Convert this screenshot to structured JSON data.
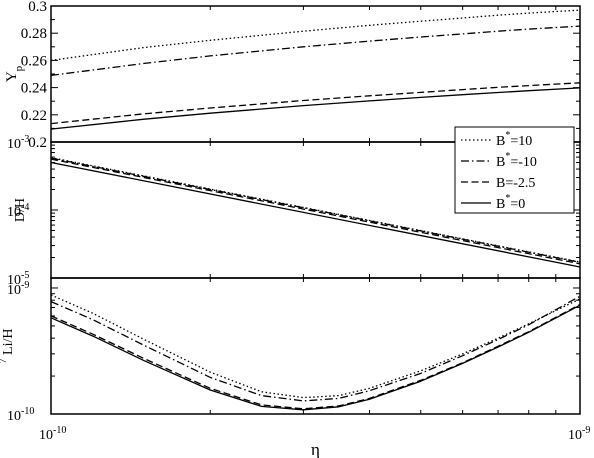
{
  "chart_data": [
    {
      "type": "line",
      "panel": "top",
      "ylabel": "Y",
      "ylabel_sub": "p",
      "xscale": "log",
      "xlim": [
        1e-10,
        1e-09
      ],
      "ylim": [
        0.2,
        0.3
      ],
      "yticks": [
        {
          "v": 0.2,
          "label": "0.2"
        },
        {
          "v": 0.22,
          "label": "0.22"
        },
        {
          "v": 0.24,
          "label": "0.24"
        },
        {
          "v": 0.26,
          "label": "0.26"
        },
        {
          "v": 0.28,
          "label": "0.28"
        },
        {
          "v": 0.3,
          "label": "0.3"
        }
      ],
      "x": [
        1e-10,
        1.5e-10,
        2e-10,
        3e-10,
        4e-10,
        5e-10,
        6e-10,
        7e-10,
        8e-10,
        1e-09
      ],
      "series": [
        {
          "name": "B*=10",
          "style": "dotted",
          "values": [
            0.26,
            0.2695,
            0.2748,
            0.2815,
            0.2858,
            0.2888,
            0.2912,
            0.2932,
            0.2948,
            0.297
          ]
        },
        {
          "name": "B*=-10",
          "style": "dashdot",
          "values": [
            0.249,
            0.2578,
            0.2633,
            0.27,
            0.2742,
            0.2772,
            0.2795,
            0.2815,
            0.283,
            0.2852
          ]
        },
        {
          "name": "B=-2.5",
          "style": "dashed",
          "values": [
            0.2135,
            0.2207,
            0.225,
            0.2305,
            0.234,
            0.2365,
            0.2385,
            0.2402,
            0.2415,
            0.2435
          ]
        },
        {
          "name": "B*=0",
          "style": "solid",
          "values": [
            0.2095,
            0.2168,
            0.2212,
            0.2268,
            0.2302,
            0.2328,
            0.2348,
            0.2364,
            0.2377,
            0.2398
          ]
        }
      ]
    },
    {
      "type": "line",
      "panel": "middle",
      "ylabel": "D/H",
      "xscale": "log",
      "yscale": "log",
      "xlim": [
        1e-10,
        1e-09
      ],
      "ylim": [
        1e-05,
        0.001
      ],
      "yticks": [
        {
          "v": 1e-05,
          "base": "10",
          "exp": "-5"
        },
        {
          "v": 0.0001,
          "base": "10",
          "exp": "-4"
        },
        {
          "v": 0.001,
          "base": "10",
          "exp": "-3"
        }
      ],
      "x": [
        1e-10,
        1e-09
      ],
      "series": [
        {
          "name": "B*=10",
          "style": "dotted",
          "values": [
            0.00059,
            1.72e-05
          ]
        },
        {
          "name": "B*=-10",
          "style": "dashdot",
          "values": [
            0.00058,
            1.7e-05
          ]
        },
        {
          "name": "B=-2.5",
          "style": "dashed",
          "values": [
            0.00056,
            1.62e-05
          ]
        },
        {
          "name": "B*=0",
          "style": "solid",
          "values": [
            0.0005,
            1.45e-05
          ]
        }
      ]
    },
    {
      "type": "line",
      "panel": "bottom",
      "ylabel": "Li/H",
      "ylabel_sup": "7",
      "xlabel": "η",
      "xscale": "log",
      "yscale": "log",
      "xlim": [
        1e-10,
        1e-09
      ],
      "ylim": [
        1e-10,
        1.2e-09
      ],
      "yticks": [
        {
          "v": 1e-10,
          "base": "10",
          "exp": "-10"
        },
        {
          "v": 1e-09,
          "base": "10",
          "exp": "-9"
        }
      ],
      "xticks": [
        {
          "v": 1e-10,
          "base": "10",
          "exp": "-10"
        },
        {
          "v": 1e-09,
          "base": "10",
          "exp": "-9"
        }
      ],
      "x": [
        1e-10,
        1.2e-10,
        1.5e-10,
        2e-10,
        2.5e-10,
        3e-10,
        3.5e-10,
        4e-10,
        5e-10,
        6e-10,
        7e-10,
        8e-10,
        1e-09
      ],
      "series": [
        {
          "name": "B*=10",
          "style": "dotted",
          "values": [
            8.8e-10,
            6.3e-10,
            3.9e-10,
            2.15e-10,
            1.5e-10,
            1.35e-10,
            1.4e-10,
            1.6e-10,
            2.2e-10,
            3e-10,
            4e-10,
            5.2e-10,
            8.2e-10
          ]
        },
        {
          "name": "B*=-10",
          "style": "dashdot",
          "values": [
            7.8e-10,
            5.6e-10,
            3.5e-10,
            1.95e-10,
            1.4e-10,
            1.27e-10,
            1.33e-10,
            1.53e-10,
            2.1e-10,
            2.9e-10,
            3.9e-10,
            5.1e-10,
            8.6e-10
          ]
        },
        {
          "name": "B=-2.5",
          "style": "dashed",
          "values": [
            6e-10,
            4.3e-10,
            2.75e-10,
            1.6e-10,
            1.18e-10,
            1.1e-10,
            1.16e-10,
            1.33e-10,
            1.85e-10,
            2.55e-10,
            3.45e-10,
            4.5e-10,
            7.4e-10
          ]
        },
        {
          "name": "B*=0",
          "style": "solid",
          "values": [
            5.8e-10,
            4.15e-10,
            2.65e-10,
            1.55e-10,
            1.15e-10,
            1.08e-10,
            1.14e-10,
            1.31e-10,
            1.82e-10,
            2.52e-10,
            3.4e-10,
            4.45e-10,
            7.3e-10
          ]
        }
      ]
    }
  ],
  "legend": {
    "placement": "right, between top and middle panels",
    "entries": [
      {
        "style": "dotted",
        "base": "B",
        "sup": "*",
        "tail": "=10"
      },
      {
        "style": "dashdot",
        "base": "B",
        "sup": "*",
        "tail": "=-10"
      },
      {
        "style": "dashed",
        "base": "B",
        "sup": "",
        "tail": "=-2.5"
      },
      {
        "style": "solid",
        "base": "B",
        "sup": "*",
        "tail": "=0"
      }
    ]
  }
}
